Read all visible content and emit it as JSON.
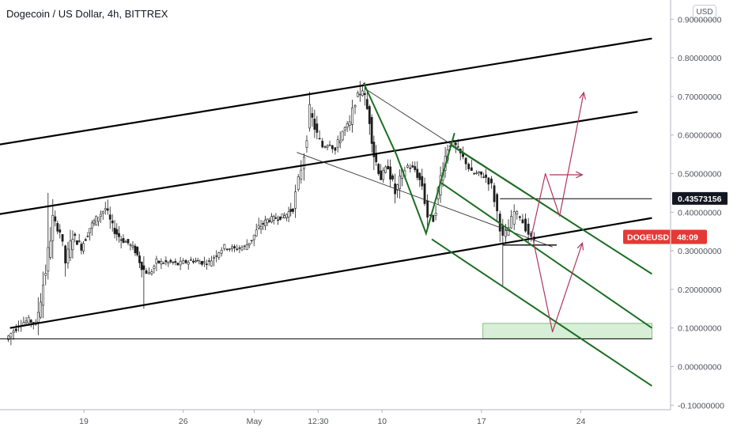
{
  "header": {
    "title": "Dogecoin / US Dollar, 4h, BITTREX",
    "currency": "USD"
  },
  "colors": {
    "up": "#26a69a",
    "down": "#ef5350",
    "candle": "#1e1e1e",
    "trend": "#000000",
    "green_channel": "#1b6e22",
    "projection": "#b0365a",
    "zone": "#d6efd6",
    "price_tag_bg": "#131722",
    "symbol_tag_bg": "#e53935"
  },
  "chart_data": {
    "type": "candlestick",
    "symbol": "DOGEUSD",
    "interval": "4h",
    "exchange": "BITTREX",
    "ylim": [
      -0.1,
      0.9
    ],
    "y_ticks": [
      -0.1,
      0.0,
      0.1,
      0.2,
      0.3,
      0.4,
      0.5,
      0.6,
      0.7,
      0.8,
      0.9
    ],
    "y_tick_labels": [
      "-0.10000000",
      "0.00000000",
      "0.10000000",
      "0.20000000",
      "0.30000000",
      "0.40000000",
      "0.50000000",
      "0.60000000",
      "0.70000000",
      "0.80000000",
      "0.90000000"
    ],
    "x_ticks": [
      {
        "label": "19",
        "day": 19
      },
      {
        "label": "26",
        "day": 26
      },
      {
        "label": "May",
        "day": 31
      },
      {
        "label": "12:30",
        "day": 35.5
      },
      {
        "label": "10",
        "day": 40
      },
      {
        "label": "17",
        "day": 47
      },
      {
        "label": "24",
        "day": 54
      }
    ],
    "price_path": [
      [
        13.6,
        0.07
      ],
      [
        14.5,
        0.11
      ],
      [
        15.2,
        0.12
      ],
      [
        15.7,
        0.11
      ],
      [
        16.4,
        0.25
      ],
      [
        16.9,
        0.38
      ],
      [
        17.4,
        0.35
      ],
      [
        17.8,
        0.27
      ],
      [
        18.3,
        0.34
      ],
      [
        18.9,
        0.31
      ],
      [
        19.5,
        0.36
      ],
      [
        20.1,
        0.39
      ],
      [
        20.6,
        0.41
      ],
      [
        21.1,
        0.36
      ],
      [
        21.7,
        0.33
      ],
      [
        22.2,
        0.32
      ],
      [
        22.7,
        0.3
      ],
      [
        23.3,
        0.25
      ],
      [
        23.7,
        0.24
      ],
      [
        24.2,
        0.27
      ],
      [
        24.7,
        0.27
      ],
      [
        25.2,
        0.27
      ],
      [
        25.7,
        0.265
      ],
      [
        26.1,
        0.27
      ],
      [
        26.8,
        0.275
      ],
      [
        27.4,
        0.27
      ],
      [
        27.9,
        0.27
      ],
      [
        28.6,
        0.3
      ],
      [
        29.0,
        0.31
      ],
      [
        29.7,
        0.305
      ],
      [
        30.4,
        0.31
      ],
      [
        30.9,
        0.33
      ],
      [
        31.4,
        0.36
      ],
      [
        32.0,
        0.38
      ],
      [
        32.6,
        0.385
      ],
      [
        33.2,
        0.39
      ],
      [
        33.8,
        0.41
      ],
      [
        34.2,
        0.48
      ],
      [
        34.6,
        0.55
      ],
      [
        35.0,
        0.66
      ],
      [
        35.5,
        0.6
      ],
      [
        35.9,
        0.57
      ],
      [
        36.4,
        0.58
      ],
      [
        36.8,
        0.56
      ],
      [
        37.3,
        0.61
      ],
      [
        37.8,
        0.63
      ],
      [
        38.2,
        0.69
      ],
      [
        38.7,
        0.72
      ],
      [
        39.2,
        0.64
      ],
      [
        39.5,
        0.55
      ],
      [
        40.0,
        0.49
      ],
      [
        40.5,
        0.52
      ],
      [
        41.0,
        0.45
      ],
      [
        41.5,
        0.5
      ],
      [
        41.9,
        0.52
      ],
      [
        42.4,
        0.51
      ],
      [
        42.9,
        0.47
      ],
      [
        43.3,
        0.39
      ],
      [
        43.7,
        0.38
      ],
      [
        44.2,
        0.49
      ],
      [
        44.7,
        0.57
      ],
      [
        45.1,
        0.58
      ],
      [
        45.6,
        0.55
      ],
      [
        46.0,
        0.53
      ],
      [
        46.4,
        0.5
      ],
      [
        46.9,
        0.5
      ],
      [
        47.4,
        0.49
      ],
      [
        47.8,
        0.47
      ],
      [
        48.2,
        0.4
      ],
      [
        48.6,
        0.33
      ],
      [
        49.0,
        0.36
      ],
      [
        49.4,
        0.4
      ],
      [
        49.8,
        0.39
      ],
      [
        50.2,
        0.36
      ],
      [
        50.6,
        0.33
      ],
      [
        50.8,
        0.33
      ]
    ],
    "current_price": 0.43573156,
    "current_price_label": "0.43573156",
    "symbol_tag": {
      "symbol": "DOGEUSD",
      "countdown": "48:09",
      "price": 0.336
    },
    "annotations": {
      "black_parallel_channel": [
        {
          "from": [
            10.5,
            0.56
          ],
          "to": [
            59.0,
            0.85
          ]
        },
        {
          "from": [
            10.5,
            0.38
          ],
          "to": [
            58.0,
            0.66
          ]
        },
        {
          "from": [
            13.8,
            0.1
          ],
          "to": [
            59.0,
            0.385
          ]
        }
      ],
      "horizontal_baseline": {
        "y": 0.072,
        "from": 10.5,
        "to": 59.0
      },
      "resistance_line": {
        "y": 0.435,
        "from": 48.3,
        "to": 59.0
      },
      "support_line": {
        "y": 0.315,
        "from": 48.5,
        "to": 52.3
      },
      "thin_descending_lines": [
        {
          "from": [
            38.8,
            0.72
          ],
          "to": [
            59.0,
            0.24
          ]
        },
        {
          "from": [
            34.0,
            0.555
          ],
          "to": [
            52.0,
            0.31
          ]
        }
      ],
      "green_descending_channel": [
        {
          "from": [
            44.8,
            0.575
          ],
          "to": [
            59.0,
            0.24
          ]
        },
        {
          "from": [
            43.5,
            0.33
          ],
          "to": [
            59.0,
            -0.05
          ]
        },
        {
          "from": [
            44.2,
            0.475
          ],
          "to": [
            59.0,
            0.1
          ]
        }
      ],
      "green_zigzag": [
        [
          38.7,
          0.735
        ],
        [
          41.0,
          0.55
        ],
        [
          43.1,
          0.345
        ],
        [
          45.1,
          0.605
        ]
      ],
      "demand_zone": {
        "x": [
          47.1,
          59.0
        ],
        "y": [
          0.072,
          0.112
        ]
      },
      "projection_up": [
        [
          50.5,
          0.335
        ],
        [
          51.5,
          0.5
        ],
        [
          52.5,
          0.39
        ],
        [
          54.2,
          0.71
        ]
      ],
      "projection_up_arrow_from": [
        51.8,
        0.497
      ],
      "projection_down": [
        [
          50.6,
          0.335
        ],
        [
          52.0,
          0.09
        ],
        [
          54.1,
          0.32
        ]
      ]
    }
  }
}
